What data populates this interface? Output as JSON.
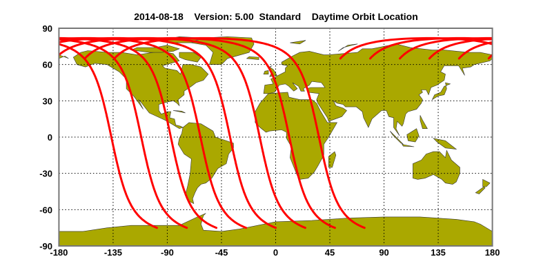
{
  "chart_data": {
    "type": "map",
    "title": "2014-08-18    Version: 5.00  Standard    Daytime Orbit Location",
    "projection": "equirectangular",
    "xlim": [
      -180,
      180
    ],
    "ylim": [
      -90,
      90
    ],
    "x_ticks": [
      "-180",
      "-135",
      "-90",
      "-45",
      "0",
      "45",
      "90",
      "135",
      "180"
    ],
    "y_ticks": [
      "90",
      "60",
      "30",
      "0",
      "-30",
      "-60",
      "-90"
    ],
    "grid": true,
    "land_color": "#aaa800",
    "track_color": "#ff0000",
    "tracks": [
      {
        "start": [
          -98.6,
          -75
        ],
        "end_lat": 65
      },
      {
        "start": [
          -73.8,
          -75
        ],
        "end_lat": 65
      },
      {
        "start": [
          -49.2,
          -75
        ],
        "end_lat": 65
      },
      {
        "start": [
          -24.6,
          -75
        ],
        "end_lat": 65
      },
      {
        "start": [
          0,
          -75
        ],
        "end_lat": 65
      },
      {
        "start": [
          24.6,
          -75
        ],
        "end_lat": 65
      },
      {
        "start": [
          49.2,
          -75
        ],
        "end_lat": 65
      },
      {
        "start": [
          73.8,
          -75
        ],
        "end_lat": 65
      }
    ]
  }
}
